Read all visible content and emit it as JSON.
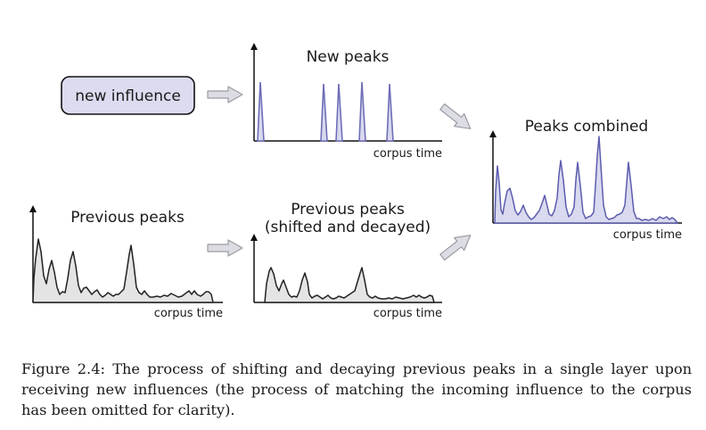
{
  "diagram": {
    "new_influence_label": "new influence",
    "new_peaks_title": "New peaks",
    "previous_peaks_title": "Previous peaks",
    "shifted_title_line1": "Previous peaks",
    "shifted_title_line2": "(shifted and decayed)",
    "combined_title": "Peaks combined",
    "axis_label": "corpus time"
  },
  "colors": {
    "new_peak_fill": "#d9d9ef",
    "new_peak_stroke": "#6e6eb8",
    "prev_fill": "#e4e4e4",
    "prev_stroke": "#222222",
    "combined_fill": "#d9d9ef",
    "combined_stroke": "#5c5cae",
    "box_fill": "#dcdcf0",
    "arrow_fill": "#dcdce4"
  },
  "caption": "Figure 2.4: The process of shifting and decaying previous peaks in a single layer upon receiving new influences (the process of matching the incoming influence to the corpus has been omitted for clarity)."
}
